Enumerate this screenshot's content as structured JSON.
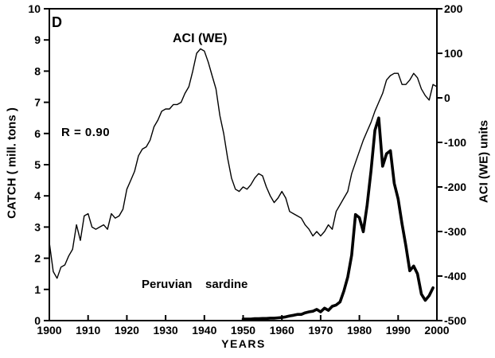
{
  "figure": {
    "background_color": "#ffffff",
    "line_color": "#000000"
  },
  "chart_data": {
    "type": "line",
    "grid": false,
    "annotations": {
      "panel_label": "D",
      "aci_curve_label": "ACI (WE)",
      "correlation_label": "R = 0.90",
      "sardine_curve_label": "Peruvian    sardine"
    },
    "x_axis": {
      "title": "YEARS",
      "range": [
        1900,
        2000
      ],
      "ticks": [
        1900,
        1910,
        1920,
        1930,
        1940,
        1950,
        1960,
        1970,
        1980,
        1990,
        2000
      ]
    },
    "left_y_axis": {
      "title": "CATCH ( mill. tons )",
      "range": [
        0,
        10
      ],
      "ticks": [
        0,
        1,
        2,
        3,
        4,
        5,
        6,
        7,
        8,
        9,
        10
      ]
    },
    "right_y_axis": {
      "title": "ACI (WE) units",
      "range": [
        -500,
        200
      ],
      "ticks": [
        200,
        100,
        0,
        -100,
        -200,
        -300,
        -400,
        -500
      ]
    },
    "series": [
      {
        "name": "ACI (WE)",
        "axis": "right",
        "style": "thin",
        "x_start": 1900,
        "x_step": 1,
        "values": [
          -325,
          -390,
          -405,
          -380,
          -375,
          -355,
          -340,
          -285,
          -320,
          -265,
          -260,
          -290,
          -295,
          -290,
          -285,
          -295,
          -260,
          -270,
          -265,
          -250,
          -205,
          -185,
          -165,
          -130,
          -115,
          -110,
          -95,
          -65,
          -50,
          -30,
          -25,
          -25,
          -15,
          -15,
          -10,
          10,
          25,
          60,
          100,
          110,
          105,
          80,
          50,
          20,
          -40,
          -80,
          -135,
          -180,
          -205,
          -210,
          -200,
          -205,
          -195,
          -180,
          -170,
          -175,
          -200,
          -220,
          -235,
          -225,
          -210,
          -225,
          -255,
          -260,
          -265,
          -270,
          -285,
          -295,
          -310,
          -300,
          -310,
          -300,
          -285,
          -295,
          -255,
          -240,
          -225,
          -210,
          -170,
          -145,
          -120,
          -95,
          -75,
          -55,
          -30,
          -10,
          10,
          40,
          50,
          55,
          55,
          30,
          30,
          40,
          55,
          45,
          20,
          5,
          -5,
          30,
          25
        ]
      },
      {
        "name": "Peruvian sardine",
        "axis": "left",
        "style": "thick",
        "x_start": 1950,
        "x_step": 1,
        "values": [
          0.05,
          0.05,
          0.05,
          0.06,
          0.06,
          0.07,
          0.07,
          0.08,
          0.08,
          0.09,
          0.1,
          0.12,
          0.15,
          0.17,
          0.2,
          0.2,
          0.25,
          0.28,
          0.3,
          0.36,
          0.28,
          0.4,
          0.33,
          0.46,
          0.5,
          0.6,
          0.95,
          1.4,
          2.1,
          3.4,
          3.3,
          2.85,
          3.7,
          4.8,
          6.1,
          6.5,
          4.95,
          5.35,
          5.45,
          4.4,
          3.9,
          3.1,
          2.4,
          1.6,
          1.75,
          1.5,
          0.85,
          0.65,
          0.8,
          1.05
        ]
      }
    ]
  }
}
